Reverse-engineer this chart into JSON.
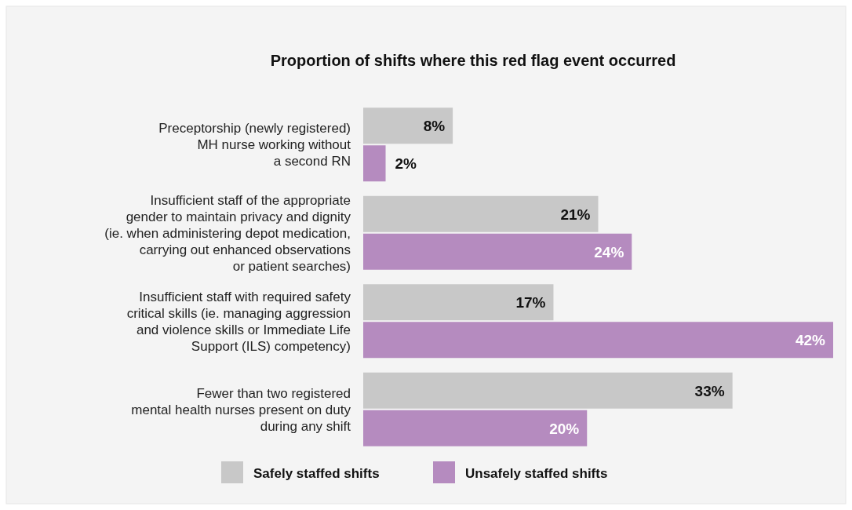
{
  "chart_data": {
    "type": "bar",
    "orientation": "horizontal",
    "title": "Proportion of shifts where this red flag event occurred",
    "categories": [
      "Preceptorship (newly registered)\nMH nurse working without\na second RN",
      "Insufficient staff of the appropriate\ngender to maintain privacy and dignity\n(ie. when administering depot medication,\ncarrying out enhanced observations\nor patient searches)",
      "Insufficient staff with required safety\ncritical skills (ie. managing aggression\nand violence skills or Immediate Life\nSupport (ILS) competency)",
      "Fewer than two registered\nmental health nurses present on duty\nduring any shift"
    ],
    "series": [
      {
        "name": "Safely staffed shifts",
        "color": "#c8c8c8",
        "values": [
          8,
          21,
          17,
          33
        ],
        "value_labels": [
          "8%",
          "21%",
          "17%",
          "33%"
        ]
      },
      {
        "name": "Unsafely staffed shifts",
        "color": "#b58bbf",
        "values": [
          2,
          24,
          42,
          20
        ],
        "value_labels": [
          "2%",
          "24%",
          "42%",
          "20%"
        ]
      }
    ],
    "legend": "bottom"
  }
}
